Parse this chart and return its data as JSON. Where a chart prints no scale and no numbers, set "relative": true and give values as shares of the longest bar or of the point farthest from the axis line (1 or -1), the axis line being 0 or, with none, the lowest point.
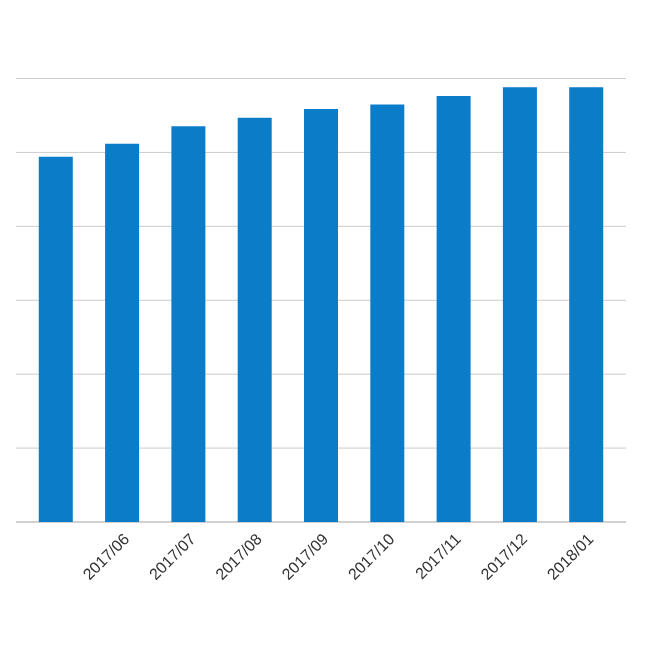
{
  "chart_data": {
    "type": "bar",
    "relative": true,
    "grid": "y",
    "color": "#0a7cc8",
    "categories": [
      null,
      "2017/06",
      "2017/07",
      "2017/08",
      "2017/09",
      "2017/10",
      "2017/11",
      "2017/12",
      "2018/01"
    ],
    "values": [
      0.84,
      0.87,
      0.91,
      0.93,
      0.95,
      0.96,
      0.98,
      1,
      1
    ]
  }
}
